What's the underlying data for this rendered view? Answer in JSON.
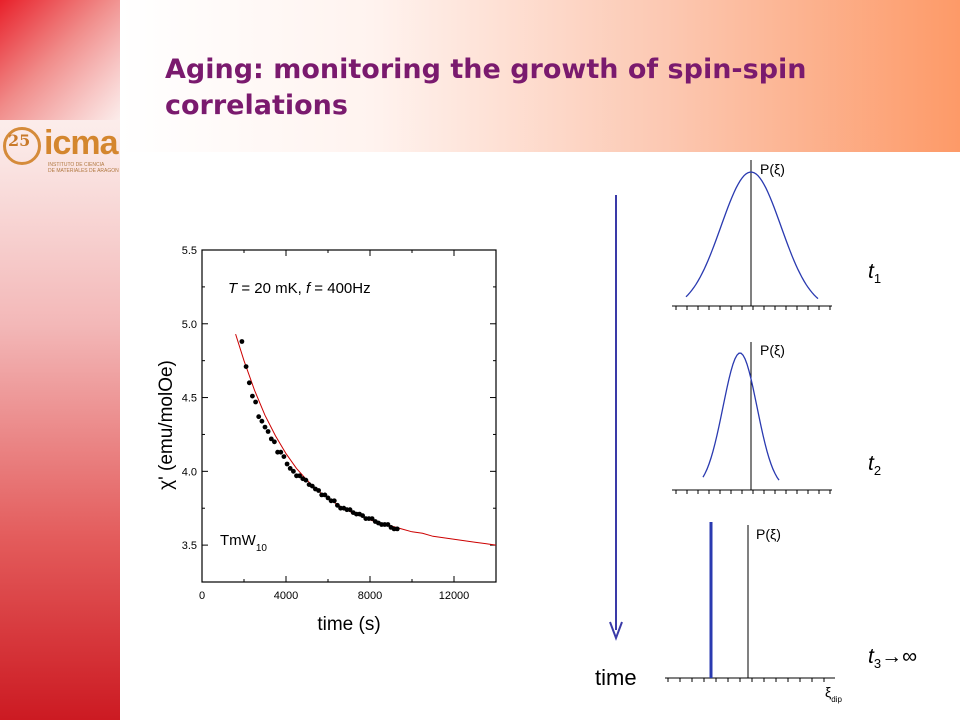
{
  "slide": {
    "title_line1": "Aging: monitoring the growth of spin-spin",
    "title_line2": "correlations"
  },
  "logo": {
    "badge": "25",
    "badge_sub": "años",
    "word": "icma",
    "sub1": "INSTITUTO DE CIENCIA",
    "sub2": "DE MATERIALES DE ARAGON"
  },
  "chart_data": {
    "type": "scatter",
    "xlabel": "time (s)",
    "ylabel": "χ' (emu/molOe)",
    "xlim": [
      0,
      14000
    ],
    "ylim": [
      3.25,
      5.5
    ],
    "x_ticks": [
      0,
      4000,
      8000,
      12000
    ],
    "y_ticks": [
      3.5,
      4.0,
      4.5,
      5.0,
      5.5
    ],
    "annotation": "T = 20 mK, f = 400Hz",
    "annotation_parts": {
      "t": "T",
      "eq1": " = 20 mK, ",
      "f": "f",
      "eq2": " = 400Hz"
    },
    "sample_label": "TmW",
    "sample_sub": "10",
    "series": [
      {
        "kind": "points",
        "color": "#000000",
        "x": [
          1900,
          2100,
          2250,
          2400,
          2550,
          2700,
          2850,
          3000,
          3150,
          3300,
          3450,
          3600,
          3750,
          3900,
          4050,
          4200,
          4350,
          4500,
          4650,
          4800,
          4950,
          5100,
          5250,
          5400,
          5550,
          5700,
          5850,
          6000,
          6150,
          6300,
          6450,
          6600,
          6750,
          6900,
          7050,
          7200,
          7350,
          7500,
          7650,
          7800,
          7950,
          8100,
          8250,
          8400,
          8550,
          8700,
          8850,
          9000,
          9150,
          9300
        ],
        "y": [
          4.88,
          4.71,
          4.6,
          4.51,
          4.47,
          4.37,
          4.34,
          4.3,
          4.27,
          4.22,
          4.2,
          4.13,
          4.13,
          4.1,
          4.05,
          4.02,
          4.0,
          3.97,
          3.97,
          3.95,
          3.94,
          3.91,
          3.9,
          3.88,
          3.87,
          3.84,
          3.84,
          3.82,
          3.8,
          3.8,
          3.77,
          3.75,
          3.75,
          3.74,
          3.74,
          3.72,
          3.71,
          3.71,
          3.7,
          3.68,
          3.68,
          3.68,
          3.66,
          3.65,
          3.64,
          3.64,
          3.64,
          3.62,
          3.61,
          3.61
        ]
      },
      {
        "kind": "fit",
        "color": "#cc0000",
        "x": [
          1600,
          2000,
          2500,
          3000,
          3500,
          4000,
          4500,
          5000,
          5500,
          6000,
          6500,
          7000,
          7500,
          8000,
          8500,
          9000,
          9500,
          10000,
          10500,
          11000,
          11500,
          12000,
          12500,
          13000,
          13500,
          14000
        ],
        "y": [
          4.93,
          4.75,
          4.55,
          4.38,
          4.24,
          4.12,
          4.02,
          3.94,
          3.87,
          3.82,
          3.77,
          3.73,
          3.7,
          3.67,
          3.65,
          3.63,
          3.61,
          3.59,
          3.58,
          3.56,
          3.55,
          3.54,
          3.53,
          3.52,
          3.51,
          3.5
        ]
      }
    ]
  },
  "diagram": {
    "time_label": "time",
    "p_label": "P(ξ)",
    "xi_symbol": "ξ",
    "xi_sub": "dip",
    "panels": [
      {
        "t_label": "t",
        "t_sub": "1",
        "t_suffix": ""
      },
      {
        "t_label": "t",
        "t_sub": "2",
        "t_suffix": ""
      },
      {
        "t_label": "t",
        "t_sub": "3",
        "t_suffix": "→∞"
      }
    ],
    "arrow_color": "#3a3aa8",
    "curve_color": "#2a3ab0"
  }
}
